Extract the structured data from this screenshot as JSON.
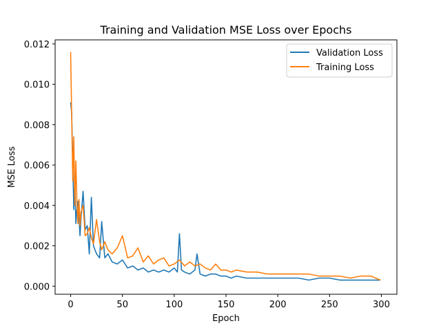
{
  "chart_data": {
    "type": "line",
    "title": "Training and Validation MSE Loss over Epochs",
    "xlabel": "Epoch",
    "ylabel": "MSE Loss",
    "xlim": [
      -15,
      315
    ],
    "ylim": [
      -0.0004,
      0.0122
    ],
    "x_ticks": [
      0,
      50,
      100,
      150,
      200,
      250,
      300
    ],
    "y_ticks": [
      0.0,
      0.002,
      0.004,
      0.006,
      0.008,
      0.01,
      0.012
    ],
    "y_tick_labels": [
      "0.000",
      "0.002",
      "0.004",
      "0.006",
      "0.008",
      "0.010",
      "0.012"
    ],
    "grid": false,
    "legend_position": "upper right",
    "series": [
      {
        "name": "Validation Loss",
        "color": "#1f77b4",
        "x": [
          0,
          1,
          2,
          3,
          4,
          5,
          6,
          7,
          8,
          9,
          10,
          12,
          14,
          16,
          18,
          20,
          22,
          25,
          28,
          30,
          33,
          36,
          40,
          45,
          50,
          55,
          60,
          65,
          70,
          75,
          80,
          85,
          90,
          95,
          100,
          103,
          105,
          107,
          110,
          115,
          120,
          122,
          125,
          130,
          135,
          140,
          145,
          150,
          155,
          160,
          170,
          180,
          190,
          200,
          210,
          220,
          230,
          240,
          250,
          260,
          270,
          280,
          290,
          299
        ],
        "y": [
          0.0091,
          0.0086,
          0.0062,
          0.0038,
          0.0052,
          0.0031,
          0.0038,
          0.0042,
          0.0034,
          0.0025,
          0.0034,
          0.0047,
          0.0028,
          0.003,
          0.0016,
          0.0044,
          0.002,
          0.0016,
          0.0014,
          0.0032,
          0.0014,
          0.0016,
          0.0012,
          0.0011,
          0.0013,
          0.0009,
          0.001,
          0.0008,
          0.0009,
          0.0007,
          0.0008,
          0.0007,
          0.0008,
          0.0007,
          0.0009,
          0.0007,
          0.0026,
          0.0008,
          0.0007,
          0.0006,
          0.0008,
          0.0016,
          0.0006,
          0.0005,
          0.0006,
          0.0006,
          0.0005,
          0.0005,
          0.0004,
          0.0005,
          0.0004,
          0.0004,
          0.0004,
          0.0004,
          0.0004,
          0.0004,
          0.0003,
          0.0004,
          0.0004,
          0.0003,
          0.0003,
          0.0003,
          0.0003,
          0.0003
        ]
      },
      {
        "name": "Training Loss",
        "color": "#ff7f0e",
        "x": [
          0,
          1,
          2,
          3,
          4,
          5,
          6,
          7,
          8,
          9,
          10,
          12,
          14,
          16,
          18,
          20,
          22,
          25,
          28,
          30,
          33,
          36,
          40,
          45,
          50,
          55,
          60,
          65,
          70,
          75,
          80,
          85,
          90,
          95,
          100,
          105,
          110,
          115,
          120,
          125,
          130,
          135,
          140,
          145,
          150,
          155,
          160,
          170,
          180,
          190,
          200,
          210,
          220,
          230,
          240,
          250,
          260,
          270,
          280,
          290,
          299
        ],
        "y": [
          0.0116,
          0.0085,
          0.0052,
          0.0074,
          0.004,
          0.0062,
          0.0042,
          0.0031,
          0.0043,
          0.003,
          0.0037,
          0.004,
          0.0025,
          0.0026,
          0.0029,
          0.0024,
          0.0021,
          0.0033,
          0.0022,
          0.0018,
          0.0022,
          0.0018,
          0.0016,
          0.0019,
          0.0025,
          0.0014,
          0.0015,
          0.0019,
          0.0012,
          0.0015,
          0.0011,
          0.0013,
          0.0014,
          0.001,
          0.0011,
          0.0013,
          0.001,
          0.0012,
          0.001,
          0.0011,
          0.0009,
          0.0008,
          0.0011,
          0.0008,
          0.0008,
          0.0007,
          0.0008,
          0.0007,
          0.0007,
          0.0006,
          0.0006,
          0.0006,
          0.0006,
          0.0006,
          0.0005,
          0.0005,
          0.0005,
          0.0004,
          0.0005,
          0.0005,
          0.0003
        ]
      }
    ]
  }
}
